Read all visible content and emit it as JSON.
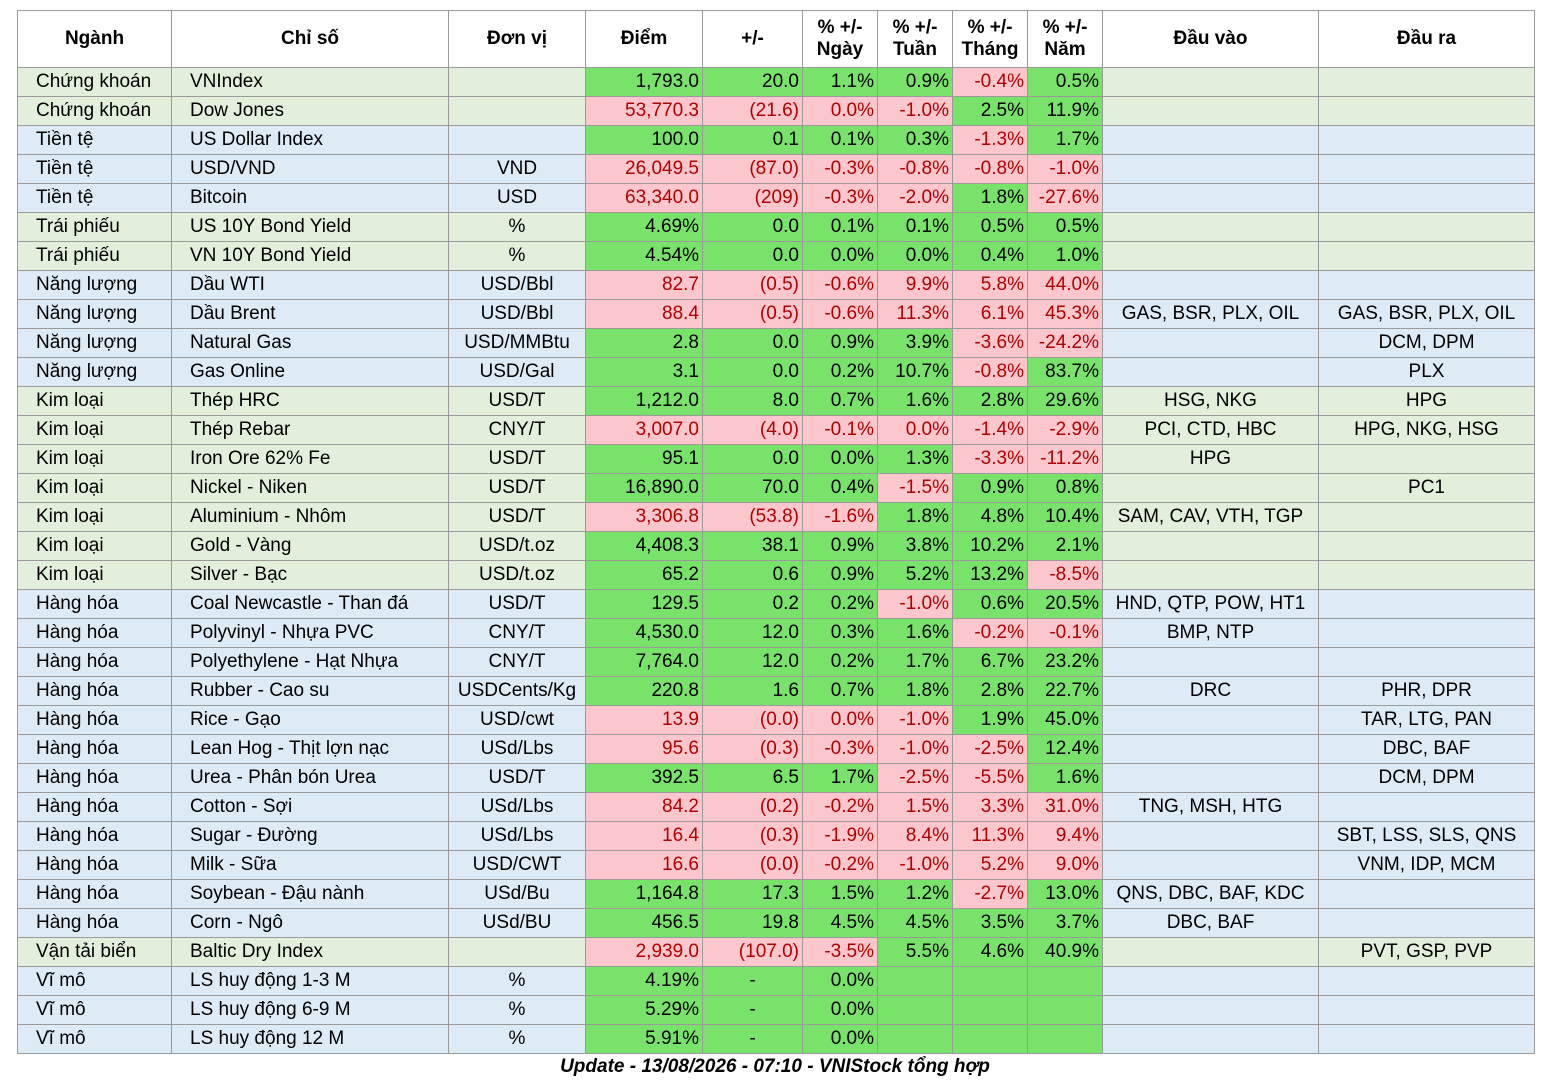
{
  "headers": [
    "Ngành",
    "Chỉ số",
    "Đơn vị",
    "Điểm",
    "+/-",
    "% +/- Ngày",
    "% +/- Tuần",
    "% +/- Tháng",
    "% +/- Năm",
    "Đầu vào",
    "Đầu ra"
  ],
  "colors": {
    "positive": "#78e26b",
    "negative": "#fbc7cc",
    "negative_text": "#b00000",
    "row_green": "#e2efda",
    "row_blue": "#ddebf7"
  },
  "rows": [
    {
      "g": "green",
      "cells": [
        "Chứng khoán",
        "VNIndex",
        "",
        "1,793.0",
        "20.0",
        "1.1%",
        "0.9%",
        "-0.4%",
        "0.5%",
        "",
        ""
      ],
      "s": [
        "",
        "",
        "",
        "p",
        "p",
        "p",
        "p",
        "n",
        "p",
        "",
        ""
      ]
    },
    {
      "g": "green",
      "cells": [
        "Chứng khoán",
        "Dow Jones",
        "",
        "53,770.3",
        "(21.6)",
        "0.0%",
        "-1.0%",
        "2.5%",
        "11.9%",
        "",
        ""
      ],
      "s": [
        "",
        "",
        "",
        "n",
        "n",
        "n",
        "n",
        "p",
        "p",
        "",
        ""
      ]
    },
    {
      "g": "blue",
      "cells": [
        "Tiền tệ",
        "US Dollar Index",
        "",
        "100.0",
        "0.1",
        "0.1%",
        "0.3%",
        "-1.3%",
        "1.7%",
        "",
        ""
      ],
      "s": [
        "",
        "",
        "",
        "p",
        "p",
        "p",
        "p",
        "n",
        "p",
        "",
        ""
      ]
    },
    {
      "g": "blue",
      "cells": [
        "Tiền tệ",
        "USD/VND",
        "VND",
        "26,049.5",
        "(87.0)",
        "-0.3%",
        "-0.8%",
        "-0.8%",
        "-1.0%",
        "",
        ""
      ],
      "s": [
        "",
        "",
        "",
        "n",
        "n",
        "n",
        "n",
        "n",
        "n",
        "",
        ""
      ]
    },
    {
      "g": "blue",
      "cells": [
        "Tiền tệ",
        "Bitcoin",
        "USD",
        "63,340.0",
        "(209)",
        "-0.3%",
        "-2.0%",
        "1.8%",
        "-27.6%",
        "",
        ""
      ],
      "s": [
        "",
        "",
        "",
        "n",
        "n",
        "n",
        "n",
        "p",
        "n",
        "",
        ""
      ]
    },
    {
      "g": "green",
      "cells": [
        "Trái phiếu",
        "US 10Y Bond Yield",
        "%",
        "4.69%",
        "0.0",
        "0.1%",
        "0.1%",
        "0.5%",
        "0.5%",
        "",
        ""
      ],
      "s": [
        "",
        "",
        "",
        "p",
        "p",
        "p",
        "p",
        "p",
        "p",
        "",
        ""
      ]
    },
    {
      "g": "green",
      "cells": [
        "Trái phiếu",
        "VN 10Y Bond Yield",
        "%",
        "4.54%",
        "0.0",
        "0.0%",
        "0.0%",
        "0.4%",
        "1.0%",
        "",
        ""
      ],
      "s": [
        "",
        "",
        "",
        "p",
        "p",
        "p",
        "p",
        "p",
        "p",
        "",
        ""
      ]
    },
    {
      "g": "blue",
      "cells": [
        "Năng lượng",
        "Dầu WTI",
        "USD/Bbl",
        "82.7",
        "(0.5)",
        "-0.6%",
        "9.9%",
        "5.8%",
        "44.0%",
        "",
        ""
      ],
      "s": [
        "",
        "",
        "",
        "n",
        "n",
        "n",
        "n",
        "n",
        "n",
        "",
        ""
      ]
    },
    {
      "g": "blue",
      "cells": [
        "Năng lượng",
        "Dầu Brent",
        "USD/Bbl",
        "88.4",
        "(0.5)",
        "-0.6%",
        "11.3%",
        "6.1%",
        "45.3%",
        "GAS, BSR, PLX, OIL",
        "GAS, BSR, PLX, OIL"
      ],
      "s": [
        "",
        "",
        "",
        "n",
        "n",
        "n",
        "n",
        "n",
        "n",
        "",
        ""
      ]
    },
    {
      "g": "blue",
      "cells": [
        "Năng lượng",
        "Natural Gas",
        "USD/MMBtu",
        "2.8",
        "0.0",
        "0.9%",
        "3.9%",
        "-3.6%",
        "-24.2%",
        "",
        "DCM, DPM"
      ],
      "s": [
        "",
        "",
        "",
        "p",
        "p",
        "p",
        "p",
        "n",
        "n",
        "",
        ""
      ]
    },
    {
      "g": "blue",
      "cells": [
        "Năng lượng",
        "Gas Online",
        "USD/Gal",
        "3.1",
        "0.0",
        "0.2%",
        "10.7%",
        "-0.8%",
        "83.7%",
        "",
        "PLX"
      ],
      "s": [
        "",
        "",
        "",
        "p",
        "p",
        "p",
        "p",
        "n",
        "p",
        "",
        ""
      ]
    },
    {
      "g": "green",
      "cells": [
        "Kim loại",
        "Thép HRC",
        "USD/T",
        "1,212.0",
        "8.0",
        "0.7%",
        "1.6%",
        "2.8%",
        "29.6%",
        "HSG, NKG",
        "HPG"
      ],
      "s": [
        "",
        "",
        "",
        "p",
        "p",
        "p",
        "p",
        "p",
        "p",
        "",
        ""
      ]
    },
    {
      "g": "green",
      "cells": [
        "Kim loại",
        "Thép Rebar",
        "CNY/T",
        "3,007.0",
        "(4.0)",
        "-0.1%",
        "0.0%",
        "-1.4%",
        "-2.9%",
        "PCI, CTD, HBC",
        "HPG, NKG, HSG"
      ],
      "s": [
        "",
        "",
        "",
        "n",
        "n",
        "n",
        "n",
        "n",
        "n",
        "",
        ""
      ]
    },
    {
      "g": "green",
      "cells": [
        "Kim loại",
        "Iron Ore 62% Fe",
        "USD/T",
        "95.1",
        "0.0",
        "0.0%",
        "1.3%",
        "-3.3%",
        "-11.2%",
        "HPG",
        ""
      ],
      "s": [
        "",
        "",
        "",
        "p",
        "p",
        "p",
        "p",
        "n",
        "n",
        "",
        ""
      ]
    },
    {
      "g": "green",
      "cells": [
        "Kim loại",
        "Nickel - Niken",
        "USD/T",
        "16,890.0",
        "70.0",
        "0.4%",
        "-1.5%",
        "0.9%",
        "0.8%",
        "",
        "PC1"
      ],
      "s": [
        "",
        "",
        "",
        "p",
        "p",
        "p",
        "n",
        "p",
        "p",
        "",
        ""
      ]
    },
    {
      "g": "green",
      "cells": [
        "Kim loại",
        "Aluminium - Nhôm",
        "USD/T",
        "3,306.8",
        "(53.8)",
        "-1.6%",
        "1.8%",
        "4.8%",
        "10.4%",
        "SAM, CAV, VTH, TGP",
        ""
      ],
      "s": [
        "",
        "",
        "",
        "n",
        "n",
        "n",
        "p",
        "p",
        "p",
        "",
        ""
      ]
    },
    {
      "g": "green",
      "cells": [
        "Kim loại",
        "Gold - Vàng",
        "USD/t.oz",
        "4,408.3",
        "38.1",
        "0.9%",
        "3.8%",
        "10.2%",
        "2.1%",
        "",
        ""
      ],
      "s": [
        "",
        "",
        "",
        "p",
        "p",
        "p",
        "p",
        "p",
        "p",
        "",
        ""
      ]
    },
    {
      "g": "green",
      "cells": [
        "Kim loại",
        "Silver - Bạc",
        "USD/t.oz",
        "65.2",
        "0.6",
        "0.9%",
        "5.2%",
        "13.2%",
        "-8.5%",
        "",
        ""
      ],
      "s": [
        "",
        "",
        "",
        "p",
        "p",
        "p",
        "p",
        "p",
        "n",
        "",
        ""
      ]
    },
    {
      "g": "blue",
      "cells": [
        "Hàng hóa",
        "Coal Newcastle - Than đá",
        "USD/T",
        "129.5",
        "0.2",
        "0.2%",
        "-1.0%",
        "0.6%",
        "20.5%",
        "HND, QTP, POW, HT1",
        ""
      ],
      "s": [
        "",
        "",
        "",
        "p",
        "p",
        "p",
        "n",
        "p",
        "p",
        "",
        ""
      ]
    },
    {
      "g": "blue",
      "cells": [
        "Hàng hóa",
        "Polyvinyl - Nhựa PVC",
        "CNY/T",
        "4,530.0",
        "12.0",
        "0.3%",
        "1.6%",
        "-0.2%",
        "-0.1%",
        "BMP, NTP",
        ""
      ],
      "s": [
        "",
        "",
        "",
        "p",
        "p",
        "p",
        "p",
        "n",
        "n",
        "",
        ""
      ]
    },
    {
      "g": "blue",
      "cells": [
        "Hàng hóa",
        "Polyethylene - Hạt Nhựa",
        "CNY/T",
        "7,764.0",
        "12.0",
        "0.2%",
        "1.7%",
        "6.7%",
        "23.2%",
        "",
        ""
      ],
      "s": [
        "",
        "",
        "",
        "p",
        "p",
        "p",
        "p",
        "p",
        "p",
        "",
        ""
      ]
    },
    {
      "g": "blue",
      "cells": [
        "Hàng hóa",
        "Rubber - Cao su",
        "USDCents/Kg",
        "220.8",
        "1.6",
        "0.7%",
        "1.8%",
        "2.8%",
        "22.7%",
        "DRC",
        "PHR, DPR"
      ],
      "s": [
        "",
        "",
        "",
        "p",
        "p",
        "p",
        "p",
        "p",
        "p",
        "",
        ""
      ]
    },
    {
      "g": "blue",
      "cells": [
        "Hàng hóa",
        "Rice - Gạo",
        "USD/cwt",
        "13.9",
        "(0.0)",
        "0.0%",
        "-1.0%",
        "1.9%",
        "45.0%",
        "",
        "TAR, LTG, PAN"
      ],
      "s": [
        "",
        "",
        "",
        "n",
        "n",
        "n",
        "n",
        "p",
        "p",
        "",
        ""
      ]
    },
    {
      "g": "blue",
      "cells": [
        "Hàng hóa",
        "Lean Hog - Thịt lợn nạc",
        "USd/Lbs",
        "95.6",
        "(0.3)",
        "-0.3%",
        "-1.0%",
        "-2.5%",
        "12.4%",
        "",
        "DBC, BAF"
      ],
      "s": [
        "",
        "",
        "",
        "n",
        "n",
        "n",
        "n",
        "n",
        "p",
        "",
        ""
      ]
    },
    {
      "g": "blue",
      "cells": [
        "Hàng hóa",
        "Urea - Phân bón Urea",
        "USD/T",
        "392.5",
        "6.5",
        "1.7%",
        "-2.5%",
        "-5.5%",
        "1.6%",
        "",
        "DCM, DPM"
      ],
      "s": [
        "",
        "",
        "",
        "p",
        "p",
        "p",
        "n",
        "n",
        "p",
        "",
        ""
      ]
    },
    {
      "g": "blue",
      "cells": [
        "Hàng hóa",
        "Cotton - Sợi",
        "USd/Lbs",
        "84.2",
        "(0.2)",
        "-0.2%",
        "1.5%",
        "3.3%",
        "31.0%",
        "TNG, MSH, HTG",
        ""
      ],
      "s": [
        "",
        "",
        "",
        "n",
        "n",
        "n",
        "n",
        "n",
        "n",
        "",
        ""
      ]
    },
    {
      "g": "blue",
      "cells": [
        "Hàng hóa",
        "Sugar - Đường",
        "USd/Lbs",
        "16.4",
        "(0.3)",
        "-1.9%",
        "8.4%",
        "11.3%",
        "9.4%",
        "",
        "SBT, LSS, SLS, QNS"
      ],
      "s": [
        "",
        "",
        "",
        "n",
        "n",
        "n",
        "n",
        "n",
        "n",
        "",
        ""
      ]
    },
    {
      "g": "blue",
      "cells": [
        "Hàng hóa",
        "Milk - Sữa",
        "USD/CWT",
        "16.6",
        "(0.0)",
        "-0.2%",
        "-1.0%",
        "5.2%",
        "9.0%",
        "",
        "VNM, IDP, MCM"
      ],
      "s": [
        "",
        "",
        "",
        "n",
        "n",
        "n",
        "n",
        "n",
        "n",
        "",
        ""
      ]
    },
    {
      "g": "blue",
      "cells": [
        "Hàng hóa",
        "Soybean - Đậu nành",
        "USd/Bu",
        "1,164.8",
        "17.3",
        "1.5%",
        "1.2%",
        "-2.7%",
        "13.0%",
        "QNS, DBC, BAF, KDC",
        ""
      ],
      "s": [
        "",
        "",
        "",
        "p",
        "p",
        "p",
        "p",
        "n",
        "p",
        "",
        ""
      ]
    },
    {
      "g": "blue",
      "cells": [
        "Hàng hóa",
        "Corn - Ngô",
        "USd/BU",
        "456.5",
        "19.8",
        "4.5%",
        "4.5%",
        "3.5%",
        "3.7%",
        "DBC, BAF",
        ""
      ],
      "s": [
        "",
        "",
        "",
        "p",
        "p",
        "p",
        "p",
        "p",
        "p",
        "",
        ""
      ]
    },
    {
      "g": "green",
      "cells": [
        "Vận tải biển",
        "Baltic Dry Index",
        "",
        "2,939.0",
        "(107.0)",
        "-3.5%",
        "5.5%",
        "4.6%",
        "40.9%",
        "",
        "PVT, GSP, PVP"
      ],
      "s": [
        "",
        "",
        "",
        "n",
        "n",
        "n",
        "p",
        "p",
        "p",
        "",
        ""
      ]
    },
    {
      "g": "blue",
      "cells": [
        "Vĩ mô",
        "LS huy động 1-3 M",
        "%",
        "4.19%",
        "-",
        "0.0%",
        "",
        "",
        "",
        "",
        ""
      ],
      "s": [
        "",
        "",
        "",
        "p",
        "p",
        "p",
        "p",
        "p",
        "p",
        "",
        ""
      ]
    },
    {
      "g": "blue",
      "cells": [
        "Vĩ mô",
        "LS huy động 6-9 M",
        "%",
        "5.29%",
        "-",
        "0.0%",
        "",
        "",
        "",
        "",
        ""
      ],
      "s": [
        "",
        "",
        "",
        "p",
        "p",
        "p",
        "p",
        "p",
        "p",
        "",
        ""
      ]
    },
    {
      "g": "blue",
      "cells": [
        "Vĩ mô",
        "LS huy động 12 M",
        "%",
        "5.91%",
        "-",
        "0.0%",
        "",
        "",
        "",
        "",
        ""
      ],
      "s": [
        "",
        "",
        "",
        "p",
        "p",
        "p",
        "p",
        "p",
        "p",
        "",
        ""
      ]
    }
  ],
  "footer": "Update - 13/08/2026 - 07:10 - VNIStock tổng hợp"
}
